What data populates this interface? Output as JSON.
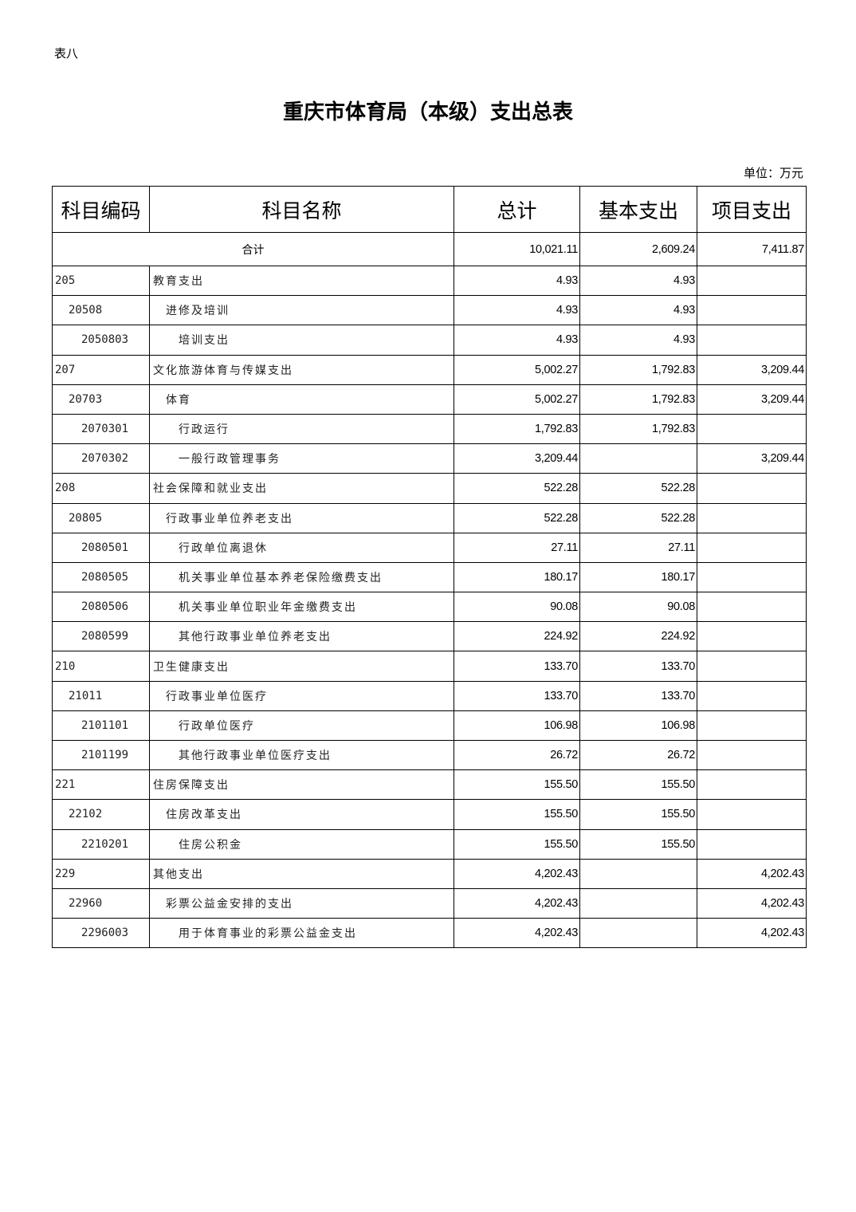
{
  "doc": {
    "tag": "表八",
    "title": "重庆市体育局（本级）支出总表",
    "unit": "单位：万元"
  },
  "table": {
    "headers": [
      "科目编码",
      "科目名称",
      "总计",
      "基本支出",
      "项目支出"
    ],
    "total": {
      "label": "合计",
      "total": "10,021.11",
      "basic": "2,609.24",
      "project": "7,411.87"
    },
    "rows": [
      {
        "level": 0,
        "code": "205",
        "name": "教育支出",
        "total": "4.93",
        "basic": "4.93",
        "project": ""
      },
      {
        "level": 1,
        "code": "20508",
        "name": "进修及培训",
        "total": "4.93",
        "basic": "4.93",
        "project": ""
      },
      {
        "level": 2,
        "code": "2050803",
        "name": "培训支出",
        "total": "4.93",
        "basic": "4.93",
        "project": ""
      },
      {
        "level": 0,
        "code": "207",
        "name": "文化旅游体育与传媒支出",
        "total": "5,002.27",
        "basic": "1,792.83",
        "project": "3,209.44"
      },
      {
        "level": 1,
        "code": "20703",
        "name": "体育",
        "total": "5,002.27",
        "basic": "1,792.83",
        "project": "3,209.44"
      },
      {
        "level": 2,
        "code": "2070301",
        "name": "行政运行",
        "total": "1,792.83",
        "basic": "1,792.83",
        "project": ""
      },
      {
        "level": 2,
        "code": "2070302",
        "name": "一般行政管理事务",
        "total": "3,209.44",
        "basic": "",
        "project": "3,209.44"
      },
      {
        "level": 0,
        "code": "208",
        "name": "社会保障和就业支出",
        "total": "522.28",
        "basic": "522.28",
        "project": ""
      },
      {
        "level": 1,
        "code": "20805",
        "name": "行政事业单位养老支出",
        "total": "522.28",
        "basic": "522.28",
        "project": ""
      },
      {
        "level": 2,
        "code": "2080501",
        "name": "行政单位离退休",
        "total": "27.11",
        "basic": "27.11",
        "project": ""
      },
      {
        "level": 2,
        "code": "2080505",
        "name": "机关事业单位基本养老保险缴费支出",
        "total": "180.17",
        "basic": "180.17",
        "project": ""
      },
      {
        "level": 2,
        "code": "2080506",
        "name": "机关事业单位职业年金缴费支出",
        "total": "90.08",
        "basic": "90.08",
        "project": ""
      },
      {
        "level": 2,
        "code": "2080599",
        "name": "其他行政事业单位养老支出",
        "total": "224.92",
        "basic": "224.92",
        "project": ""
      },
      {
        "level": 0,
        "code": "210",
        "name": "卫生健康支出",
        "total": "133.70",
        "basic": "133.70",
        "project": ""
      },
      {
        "level": 1,
        "code": "21011",
        "name": "行政事业单位医疗",
        "total": "133.70",
        "basic": "133.70",
        "project": ""
      },
      {
        "level": 2,
        "code": "2101101",
        "name": "行政单位医疗",
        "total": "106.98",
        "basic": "106.98",
        "project": ""
      },
      {
        "level": 2,
        "code": "2101199",
        "name": "其他行政事业单位医疗支出",
        "total": "26.72",
        "basic": "26.72",
        "project": ""
      },
      {
        "level": 0,
        "code": "221",
        "name": "住房保障支出",
        "total": "155.50",
        "basic": "155.50",
        "project": ""
      },
      {
        "level": 1,
        "code": "22102",
        "name": "住房改革支出",
        "total": "155.50",
        "basic": "155.50",
        "project": ""
      },
      {
        "level": 2,
        "code": "2210201",
        "name": "住房公积金",
        "total": "155.50",
        "basic": "155.50",
        "project": ""
      },
      {
        "level": 0,
        "code": "229",
        "name": "其他支出",
        "total": "4,202.43",
        "basic": "",
        "project": "4,202.43"
      },
      {
        "level": 1,
        "code": "22960",
        "name": "彩票公益金安排的支出",
        "total": "4,202.43",
        "basic": "",
        "project": "4,202.43"
      },
      {
        "level": 2,
        "code": "2296003",
        "name": "用于体育事业的彩票公益金支出",
        "total": "4,202.43",
        "basic": "",
        "project": "4,202.43"
      }
    ]
  }
}
